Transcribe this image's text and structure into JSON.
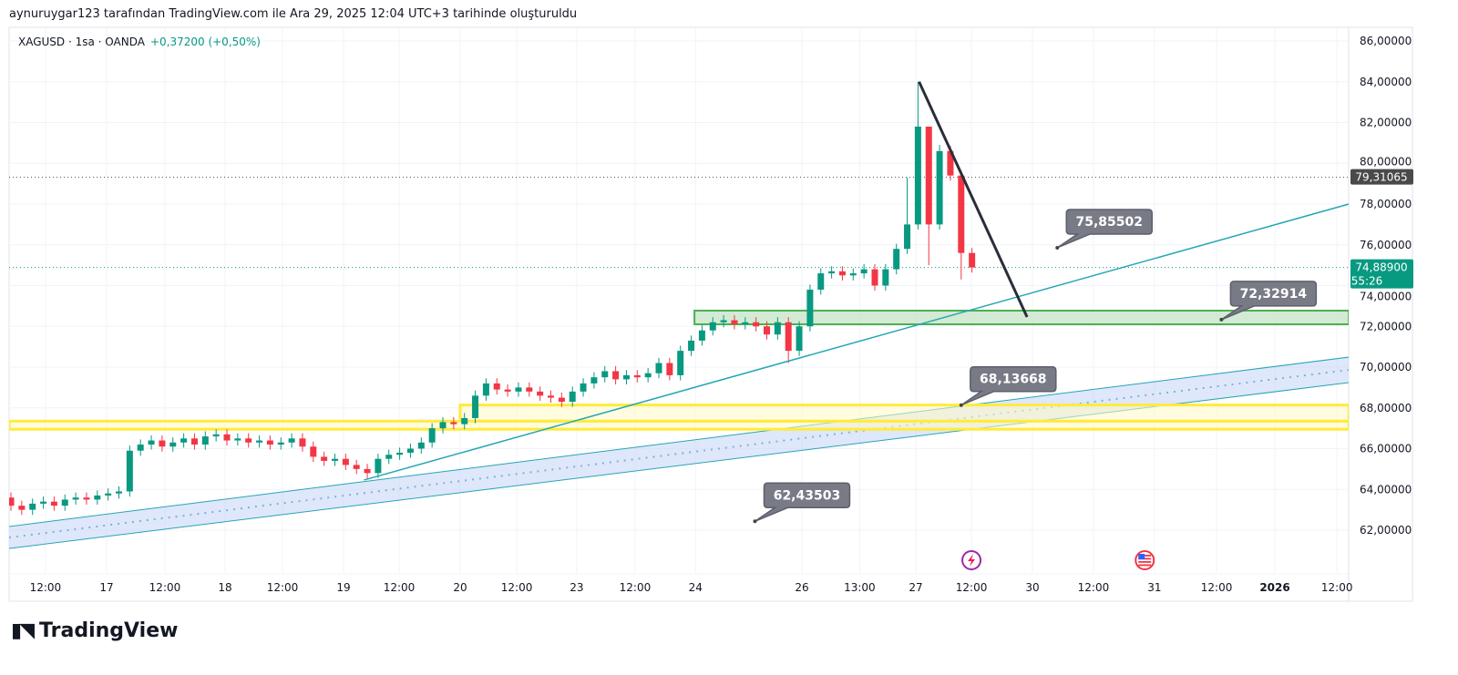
{
  "caption": "aynuruygar123 tarafından TradingView.com ile Ara 29, 2025 12:04 UTC+3 tarihinde oluşturuldu",
  "legend": {
    "symbol": "XAGUSD · 1sa · OANDA",
    "change": "+0,37200 (+0,50%)"
  },
  "brand": {
    "logo_mark": "TV",
    "name": "TradingView"
  },
  "colors": {
    "up": "#089981",
    "down": "#f23645",
    "trend_teal": "#26a6b5",
    "channel_fill": "#c9d7f8",
    "green_zone": "#4caf50",
    "yellow_zone": "#ffeb3b",
    "callout": "#787b86"
  },
  "chart_data": {
    "type": "candlestick",
    "symbol": "XAGUSD",
    "interval": "1sa",
    "ylim": [
      61,
      87
    ],
    "y_ticks": [
      "62,00000",
      "64,00000",
      "66,00000",
      "68,00000",
      "70,00000",
      "72,00000",
      "74,00000",
      "76,00000",
      "78,00000",
      "80,00000",
      "82,00000",
      "84,00000",
      "86,00000"
    ],
    "y_tick_values": [
      62,
      64,
      66,
      68,
      70,
      72,
      74,
      76,
      78,
      80,
      82,
      84,
      86
    ],
    "x_ticks": [
      {
        "label": "12:00",
        "bar": 3.2
      },
      {
        "label": "17",
        "bar": 8.86
      },
      {
        "label": "12:00",
        "bar": 14.26
      },
      {
        "label": "18",
        "bar": 19.83
      },
      {
        "label": "12:00",
        "bar": 25.15
      },
      {
        "label": "19",
        "bar": 30.8
      },
      {
        "label": "12:00",
        "bar": 35.95
      },
      {
        "label": "20",
        "bar": 41.6
      },
      {
        "label": "12:00",
        "bar": 46.84
      },
      {
        "label": "23",
        "bar": 52.4
      },
      {
        "label": "12:00",
        "bar": 57.8
      },
      {
        "label": "24",
        "bar": 63.4
      },
      {
        "label": "26",
        "bar": 73.25
      },
      {
        "label": "13:00",
        "bar": 78.6
      },
      {
        "label": "27",
        "bar": 83.8
      },
      {
        "label": "12:00",
        "bar": 88.95
      },
      {
        "label": "30",
        "bar": 94.6
      },
      {
        "label": "12:00",
        "bar": 100.25
      },
      {
        "label": "31",
        "bar": 105.9
      },
      {
        "label": "12:00",
        "bar": 111.65
      },
      {
        "label": "2026",
        "bar": 117.05,
        "bold": true
      },
      {
        "label": "12:00",
        "bar": 122.8
      }
    ],
    "open_first": 63.6,
    "close": [
      63.2,
      63.0,
      63.3,
      63.4,
      63.2,
      63.5,
      63.6,
      63.5,
      63.7,
      63.8,
      63.9,
      65.9,
      66.2,
      66.4,
      66.1,
      66.3,
      66.5,
      66.2,
      66.6,
      66.7,
      66.4,
      66.5,
      66.3,
      66.4,
      66.2,
      66.3,
      66.5,
      66.1,
      65.6,
      65.4,
      65.5,
      65.2,
      65.0,
      64.8,
      65.5,
      65.7,
      65.8,
      66.0,
      66.3,
      67.0,
      67.3,
      67.2,
      67.5,
      68.6,
      69.2,
      68.9,
      68.8,
      69.0,
      68.8,
      68.6,
      68.5,
      68.3,
      68.8,
      69.2,
      69.5,
      69.8,
      69.4,
      69.6,
      69.5,
      69.7,
      70.2,
      69.6,
      70.8,
      71.3,
      71.8,
      72.2,
      72.3,
      72.1,
      72.2,
      72.0,
      71.6,
      72.2,
      70.8,
      72.0,
      73.8,
      74.6,
      74.7,
      74.5,
      74.6,
      74.8,
      74.0,
      74.8,
      75.8,
      77.0,
      81.8,
      77.0,
      80.6,
      79.4,
      75.6,
      74.889
    ],
    "high_overrides": {
      "83": 79.3,
      "84": 84.0,
      "85": 81.8,
      "86": 80.9
    },
    "low_overrides": {
      "72": 70.2,
      "85": 75.0,
      "88": 74.3
    },
    "price_lines": [
      {
        "label": "79,31065",
        "value": 79.31065,
        "color": "#4a4a4a"
      },
      {
        "label": "74,88900",
        "value": 74.889,
        "countdown": "55:26",
        "color": "#089981"
      }
    ],
    "drawings": {
      "black_trendline": {
        "from": [
          84.1,
          84.0
        ],
        "to": [
          94.1,
          72.46
        ]
      },
      "teal_trendline": {
        "from": [
          32.7,
          64.46
        ],
        "to": [
          123.9,
          78.0
        ]
      },
      "channel": {
        "from_bar": -0.17,
        "to_bar": 123.9,
        "upper": [
          62.18,
          70.49
        ],
        "lower": [
          61.1,
          69.24
        ]
      },
      "green_zone": {
        "from_bar": 63.3,
        "to_bar": 123.9,
        "top": 72.77,
        "bottom": 72.1
      },
      "yellow_zones": [
        {
          "from_bar": -0.17,
          "to_bar": 123.9,
          "top": 67.35,
          "bottom": 66.95
        },
        {
          "from_bar": 41.6,
          "to_bar": 123.9,
          "top": 68.14,
          "bottom": 67.35
        }
      ]
    },
    "callouts": [
      {
        "label": "75,85502",
        "bar": 96.9,
        "price": 75.85502
      },
      {
        "label": "72,32914",
        "bar": 112.1,
        "price": 72.32914
      },
      {
        "label": "68,13668",
        "bar": 88.0,
        "price": 68.13668
      },
      {
        "label": "62,43503",
        "bar": 68.9,
        "price": 62.43503
      }
    ],
    "events": [
      {
        "icon": "lightning-event-icon",
        "bar": 88.95
      },
      {
        "icon": "us-flag-event-icon",
        "bar": 105.0
      }
    ]
  }
}
